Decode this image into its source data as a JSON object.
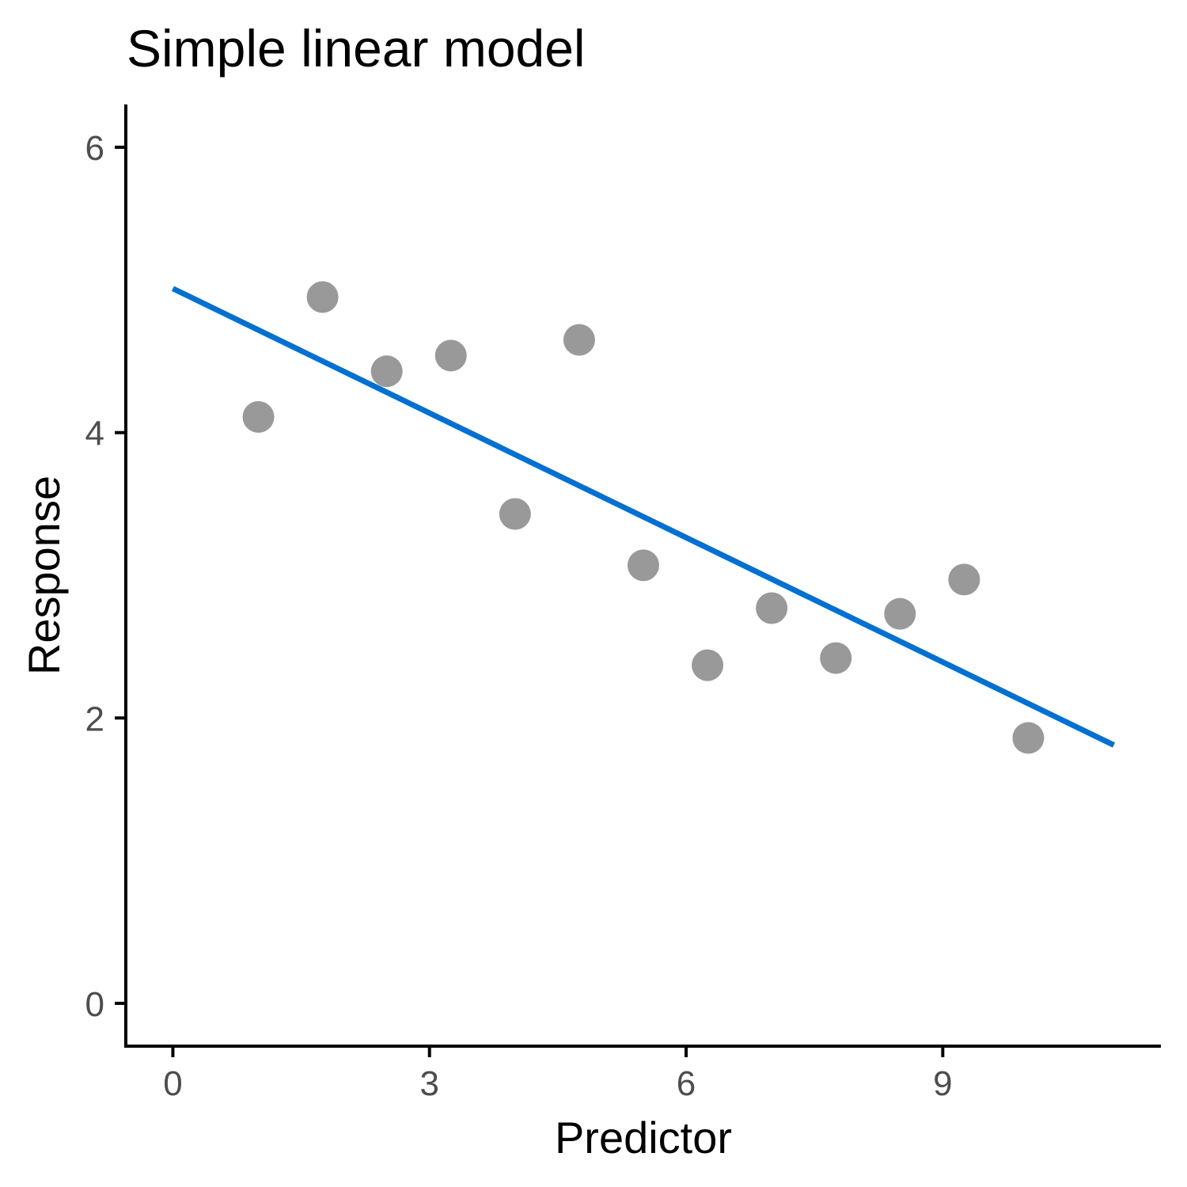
{
  "chart_data": {
    "type": "scatter",
    "title": "Simple linear model",
    "xlabel": "Predictor",
    "ylabel": "Response",
    "xlim": [
      -0.55,
      11.55
    ],
    "ylim": [
      -0.3,
      6.3
    ],
    "x_ticks": [
      0,
      3,
      6,
      9
    ],
    "y_ticks": [
      0,
      2,
      4,
      6
    ],
    "grid": false,
    "point_color": "#999999",
    "line_color": "#0070d2",
    "series": [
      {
        "values": [
          {
            "x": 1.0,
            "y": 4.11
          },
          {
            "x": 1.75,
            "y": 4.95
          },
          {
            "x": 2.5,
            "y": 4.43
          },
          {
            "x": 3.25,
            "y": 4.54
          },
          {
            "x": 4.0,
            "y": 3.43
          },
          {
            "x": 4.75,
            "y": 4.65
          },
          {
            "x": 5.5,
            "y": 3.07
          },
          {
            "x": 6.25,
            "y": 2.37
          },
          {
            "x": 7.0,
            "y": 2.77
          },
          {
            "x": 7.75,
            "y": 2.42
          },
          {
            "x": 8.5,
            "y": 2.73
          },
          {
            "x": 9.25,
            "y": 2.97
          },
          {
            "x": 10.0,
            "y": 1.86
          }
        ]
      }
    ],
    "fit_line": {
      "x": [
        0,
        11
      ],
      "y": [
        5.01,
        1.81
      ]
    }
  }
}
